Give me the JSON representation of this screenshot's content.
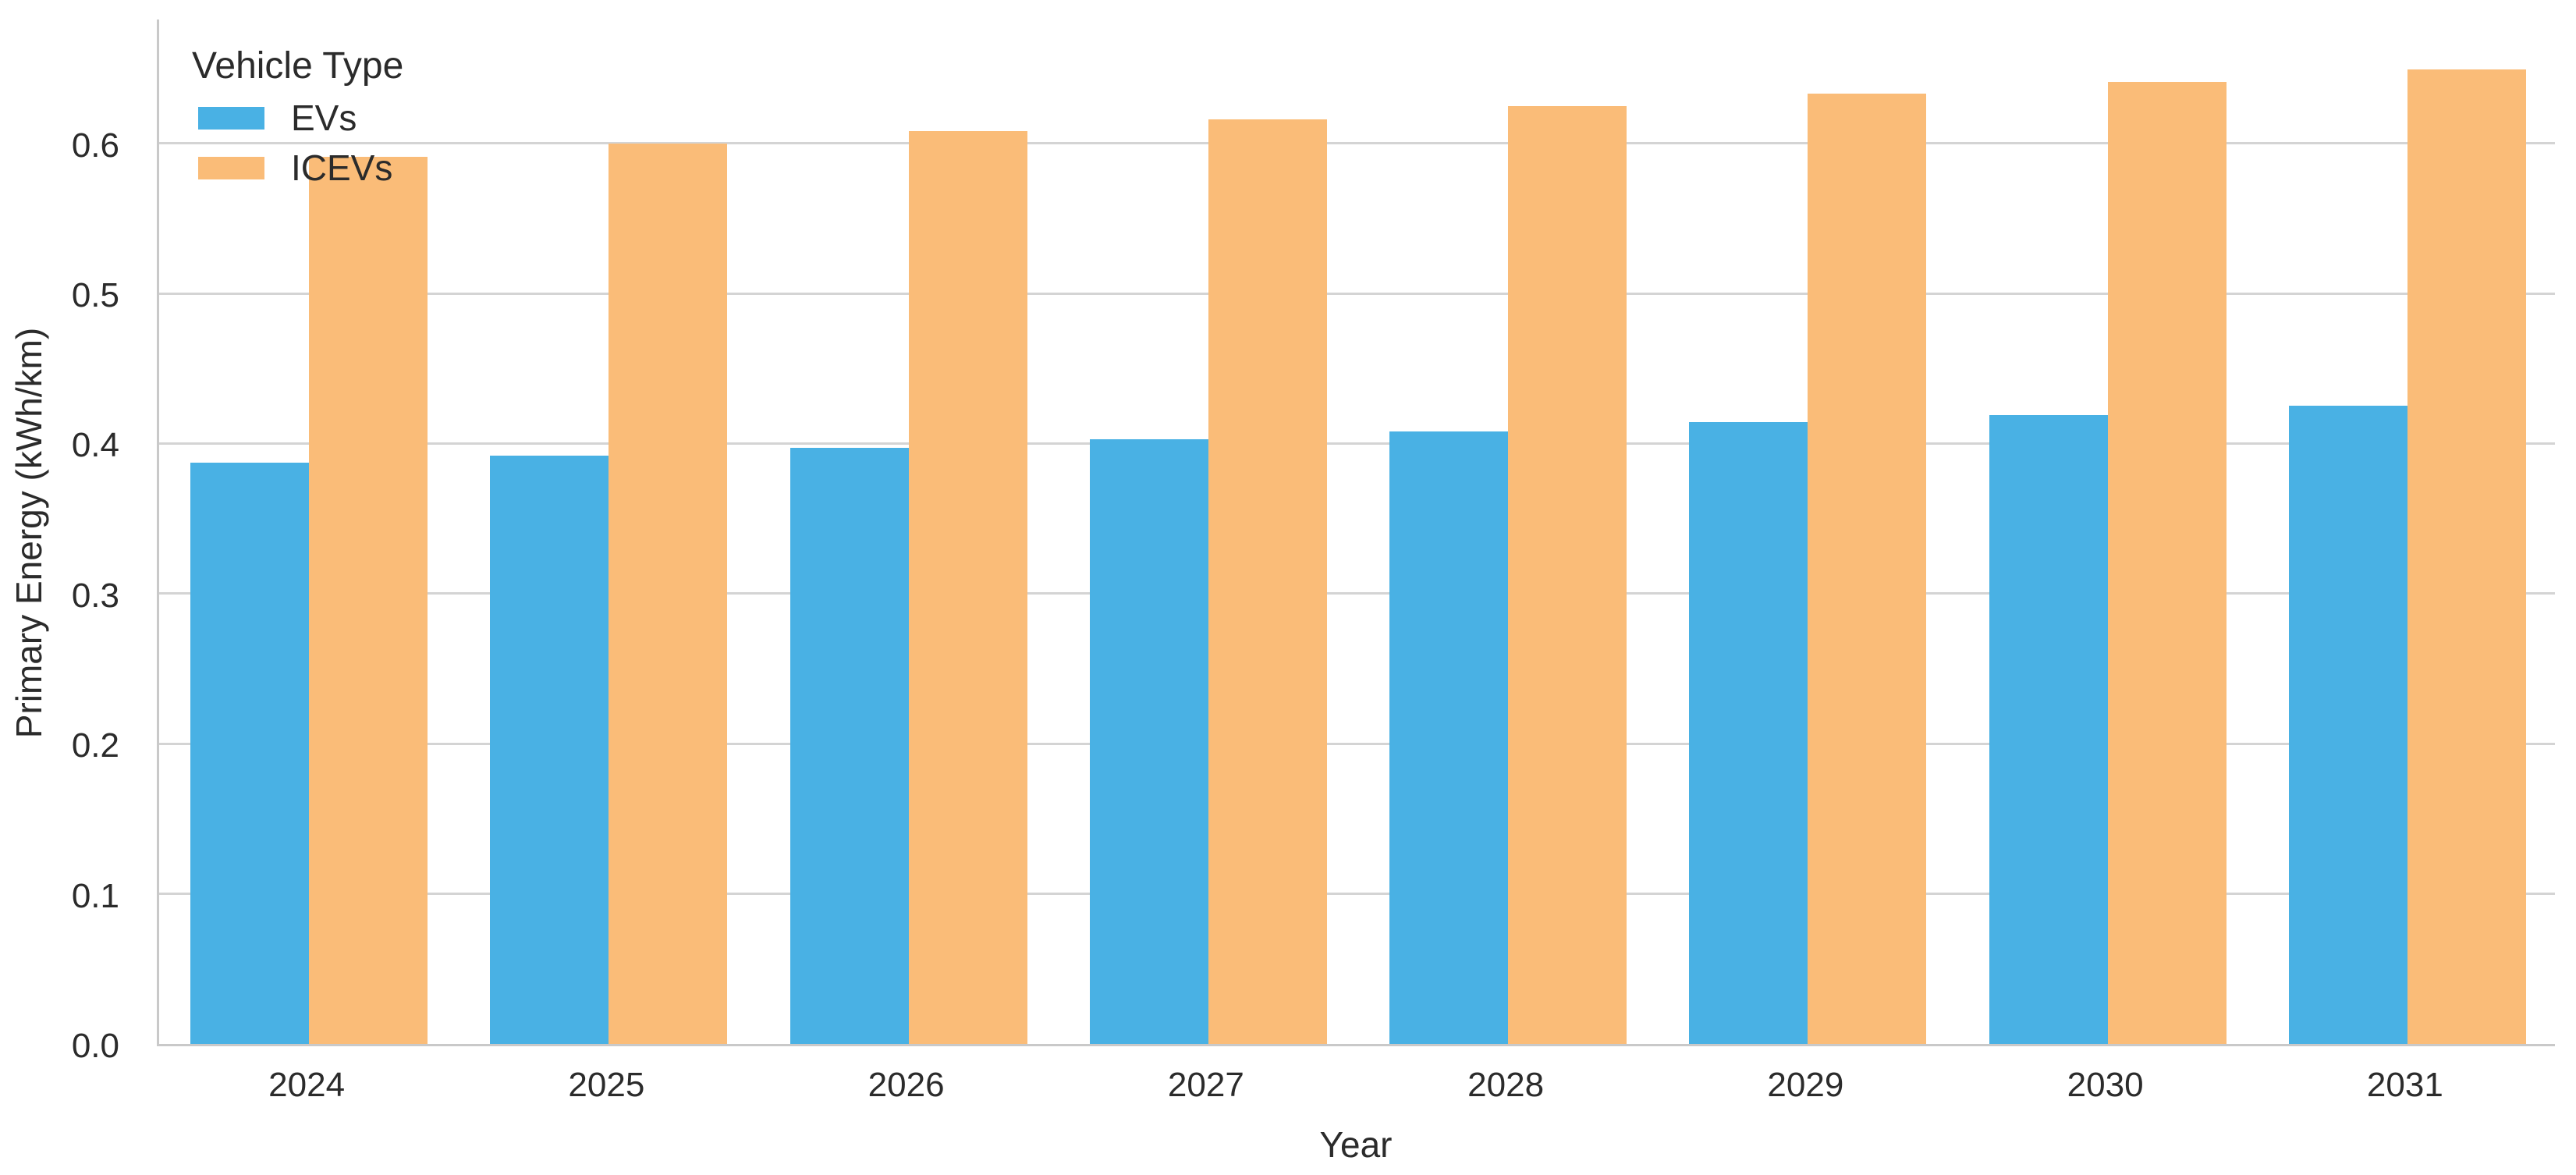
{
  "chart_data": {
    "type": "bar",
    "title": "",
    "xlabel": "Year",
    "ylabel": "Primary Energy (kWh/km)",
    "categories": [
      "2024",
      "2025",
      "2026",
      "2027",
      "2028",
      "2029",
      "2030",
      "2031"
    ],
    "series": [
      {
        "name": "EVs",
        "color": "#49B1E4",
        "values": [
          0.387,
          0.392,
          0.397,
          0.403,
          0.408,
          0.414,
          0.419,
          0.425
        ]
      },
      {
        "name": "ICEVs",
        "color": "#FABC78",
        "values": [
          0.591,
          0.6,
          0.608,
          0.616,
          0.625,
          0.633,
          0.641,
          0.649
        ]
      }
    ],
    "ylim": [
      0,
      0.684
    ],
    "yticks": [
      0.0,
      0.1,
      0.2,
      0.3,
      0.4,
      0.5,
      0.6
    ],
    "ytick_labels": [
      "0.0",
      "0.1",
      "0.2",
      "0.3",
      "0.4",
      "0.5",
      "0.6"
    ],
    "grid": "horizontal",
    "grid_color": "#d4d4d4",
    "legend": {
      "title": "Vehicle Type",
      "position": "upper-left"
    }
  }
}
